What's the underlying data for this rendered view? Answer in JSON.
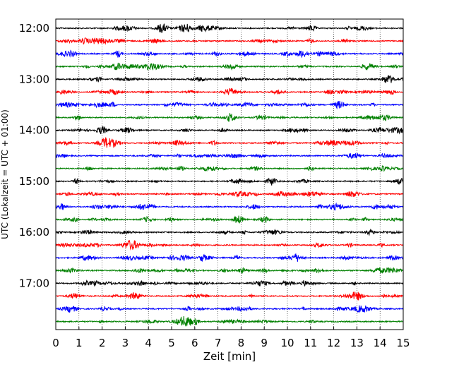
{
  "chart_data": {
    "type": "line",
    "xlabel": "Zeit  [min]",
    "ylabel": "UTC (Lokalzeit = UTC + 01:00)",
    "xlim": [
      0,
      15
    ],
    "x_ticks": [
      "0",
      "1",
      "2",
      "3",
      "4",
      "5",
      "6",
      "7",
      "8",
      "9",
      "10",
      "11",
      "12",
      "13",
      "14",
      "15"
    ],
    "y_tick_labels": [
      "12:00",
      "13:00",
      "14:00",
      "15:00",
      "16:00",
      "17:00"
    ],
    "grid": "vertical dotted",
    "trace_interval_minutes": 15,
    "trace_colors": [
      "#000000",
      "#ff0000",
      "#0000ff",
      "#008000"
    ],
    "traces": [
      "12:00",
      "12:15",
      "12:30",
      "12:45",
      "13:00",
      "13:15",
      "13:30",
      "13:45",
      "14:00",
      "14:15",
      "14:30",
      "14:45",
      "15:00",
      "15:15",
      "15:30",
      "15:45",
      "16:00",
      "16:15",
      "16:30",
      "16:45",
      "17:00",
      "17:15",
      "17:30",
      "17:45"
    ]
  }
}
